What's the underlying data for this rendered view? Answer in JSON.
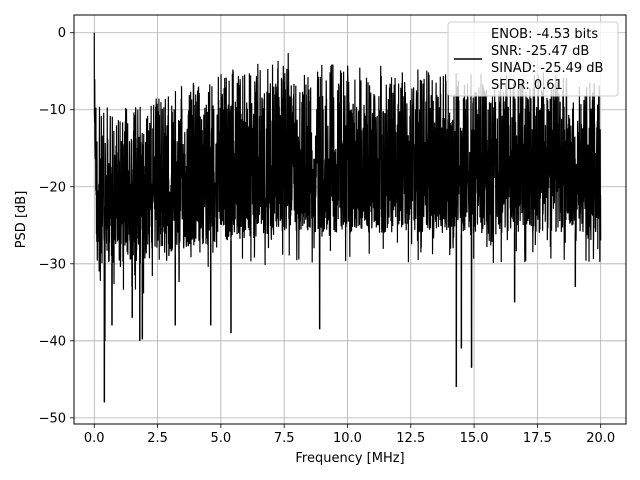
{
  "chart_data": {
    "type": "line",
    "xlabel": "Frequency [MHz]",
    "ylabel": "PSD [dB]",
    "xlim": [
      -0.8,
      21.0
    ],
    "ylim": [
      -50.8,
      2.3
    ],
    "xticks": [
      0.0,
      2.5,
      5.0,
      7.5,
      10.0,
      12.5,
      15.0,
      17.5,
      20.0
    ],
    "xtick_labels": [
      "0.0",
      "2.5",
      "5.0",
      "7.5",
      "10.0",
      "12.5",
      "15.0",
      "17.5",
      "20.0"
    ],
    "yticks": [
      0,
      -10,
      -20,
      -30,
      -40,
      -50
    ],
    "ytick_labels": [
      "0",
      "−10",
      "−20",
      "−30",
      "−40",
      "−50"
    ],
    "grid": true,
    "legend_position": "top-right",
    "legend_lines": [
      "ENOB: -4.53 bits",
      "SNR: -25.47 dB",
      "SINAD: -25.49 dB",
      "SFDR: 0.61"
    ],
    "line_color": "#000000",
    "envelope": {
      "x": [
        0.0,
        0.05,
        0.1,
        0.3,
        0.5,
        1.0,
        2.0,
        3.0,
        4.0,
        5.0,
        6.0,
        7.0,
        7.5,
        8.0,
        9.0,
        10.0,
        11.0,
        12.0,
        13.0,
        14.0,
        15.0,
        16.0,
        17.0,
        18.0,
        19.0,
        20.0
      ],
      "upper": [
        0.0,
        -5.0,
        -8.0,
        -10.0,
        -9.0,
        -9.0,
        -8.0,
        -7.0,
        -6.0,
        -5.0,
        -4.0,
        -3.5,
        -1.5,
        -3.5,
        -3.5,
        -4.0,
        -4.0,
        -4.0,
        -4.5,
        -5.0,
        -4.5,
        -5.0,
        -5.0,
        -5.0,
        -5.5,
        -6.0
      ],
      "lower": [
        -13.0,
        -20.0,
        -30.0,
        -30.0,
        -30.0,
        -30.0,
        -30.0,
        -29.0,
        -28.0,
        -27.0,
        -27.0,
        -26.0,
        -26.0,
        -26.0,
        -26.0,
        -26.0,
        -26.0,
        -26.0,
        -26.0,
        -26.0,
        -26.0,
        -26.0,
        -26.0,
        -26.0,
        -26.0,
        -26.0
      ]
    },
    "deep_dips": [
      {
        "x": 0.4,
        "y": -48.0
      },
      {
        "x": 0.42,
        "y": -40.0
      },
      {
        "x": 0.7,
        "y": -38.0
      },
      {
        "x": 1.5,
        "y": -37.0
      },
      {
        "x": 1.8,
        "y": -40.0
      },
      {
        "x": 1.9,
        "y": -39.8
      },
      {
        "x": 3.2,
        "y": -38.0
      },
      {
        "x": 4.6,
        "y": -38.0
      },
      {
        "x": 5.4,
        "y": -39.0
      },
      {
        "x": 8.9,
        "y": -38.5
      },
      {
        "x": 14.3,
        "y": -46.0
      },
      {
        "x": 14.5,
        "y": -41.0
      },
      {
        "x": 14.9,
        "y": -43.5
      },
      {
        "x": 16.6,
        "y": -35.0
      },
      {
        "x": 19.0,
        "y": -33.0
      }
    ]
  }
}
